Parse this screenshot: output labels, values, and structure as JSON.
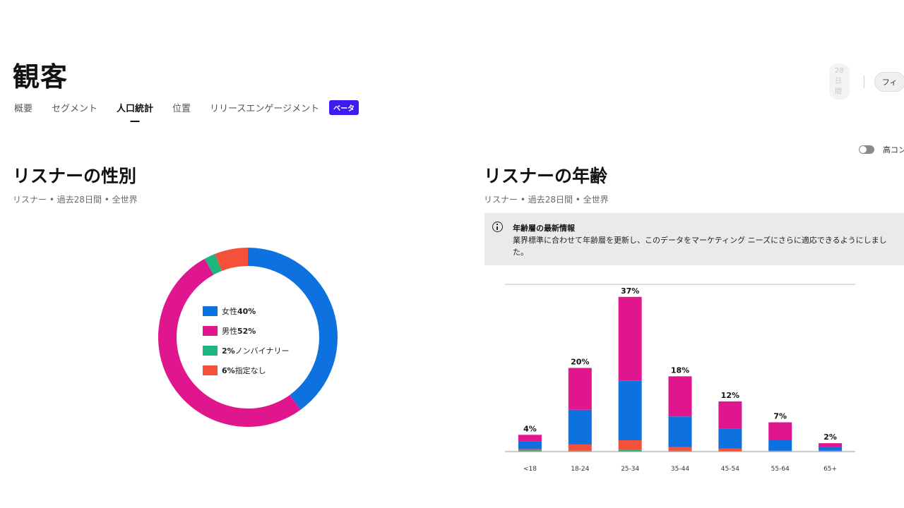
{
  "page": {
    "title": "観客"
  },
  "header": {
    "period": "28日間",
    "filter": "フィ"
  },
  "tabs": [
    {
      "label": "概要"
    },
    {
      "label": "セグメント"
    },
    {
      "label": "人口統計"
    },
    {
      "label": "位置"
    },
    {
      "label": "リリースエンゲージメント"
    }
  ],
  "beta_label": "ベータ",
  "contrast_toggle": {
    "label": "高コン"
  },
  "gender": {
    "title": "リスナーの性別",
    "subtitle": "リスナー • 過去28日間 • 全世界",
    "legend": [
      {
        "name_before": "女性",
        "pct": "40%",
        "name_after": "",
        "color": "#0d72e0"
      },
      {
        "name_before": "男性",
        "pct": "52%",
        "name_after": "",
        "color": "#e0168e"
      },
      {
        "name_before": "",
        "pct": "2%",
        "name_after": " ノンバイナリー",
        "color": "#1db67f"
      },
      {
        "name_before": "",
        "pct": "6%",
        "name_after": " 指定なし",
        "color": "#f4513a"
      }
    ]
  },
  "age": {
    "title": "リスナーの年齢",
    "subtitle": "リスナー • 過去28日間 • 全世界",
    "info": {
      "title": "年齢層の最新情報",
      "body": "業界標準に合わせて年齢層を更新し、このデータをマーケティング ニーズにさらに適応できるようにしました。"
    }
  },
  "chart_data": [
    {
      "type": "pie",
      "labels": [
        "女性",
        "男性",
        "ノンバイナリー",
        "指定なし"
      ],
      "values": [
        40,
        52,
        2,
        6
      ],
      "colors": [
        "#0d72e0",
        "#e0168e",
        "#1db67f",
        "#f4513a"
      ]
    },
    {
      "type": "bar",
      "stacked": true,
      "categories": [
        "<18",
        "18-24",
        "25-34",
        "35-44",
        "45-54",
        "55-64",
        "65+"
      ],
      "totals": [
        4,
        20,
        37,
        18,
        12,
        7,
        2
      ],
      "total_labels": [
        "4%",
        "20%",
        "37%",
        "18%",
        "12%",
        "7%",
        "2%"
      ],
      "ylim": [
        0,
        40
      ],
      "series": [
        {
          "values": [
            0.3,
            0.2,
            0.4,
            0.2,
            0.1,
            0.1,
            0.1
          ],
          "color": "#1db67f"
        },
        {
          "values": [
            0.3,
            1.5,
            2.3,
            0.9,
            0.6,
            0.1,
            0.1
          ],
          "color": "#f4513a"
        },
        {
          "values": [
            1.9,
            8.3,
            14.3,
            7.3,
            4.8,
            2.5,
            0.9
          ],
          "color": "#0d72e0"
        },
        {
          "values": [
            1.5,
            10.0,
            20.0,
            9.6,
            6.5,
            4.3,
            0.9
          ],
          "color": "#e0168e"
        }
      ]
    }
  ]
}
